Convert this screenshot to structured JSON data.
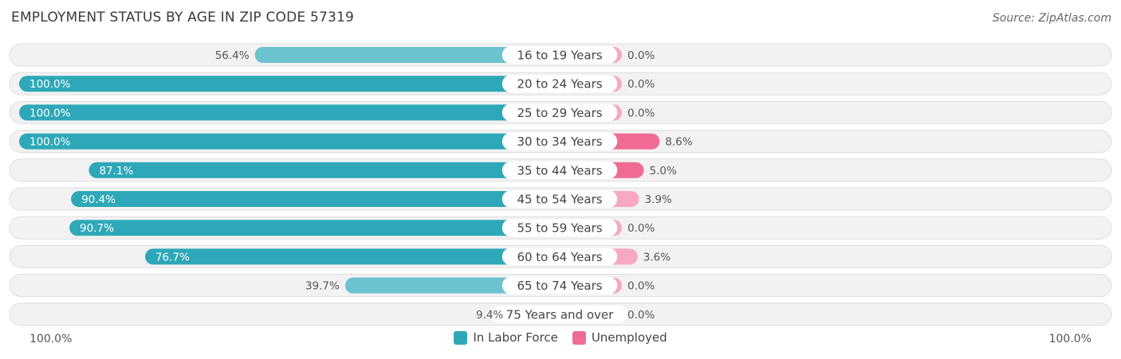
{
  "chart_data": {
    "type": "bar",
    "orientation": "diverging-horizontal",
    "title": "EMPLOYMENT STATUS BY AGE IN ZIP CODE 57319",
    "source": "Source: ZipAtlas.com",
    "categories": [
      "16 to 19 Years",
      "20 to 24 Years",
      "25 to 29 Years",
      "30 to 34 Years",
      "35 to 44 Years",
      "45 to 54 Years",
      "55 to 59 Years",
      "60 to 64 Years",
      "65 to 74 Years",
      "75 Years and over"
    ],
    "series": [
      {
        "name": "In Labor Force",
        "color": "#2ea8b8",
        "values": [
          56.4,
          100.0,
          100.0,
          100.0,
          87.1,
          90.4,
          90.7,
          76.7,
          39.7,
          9.4
        ],
        "labels": [
          "56.4%",
          "100.0%",
          "100.0%",
          "100.0%",
          "87.1%",
          "90.4%",
          "90.7%",
          "76.7%",
          "39.7%",
          "9.4%"
        ]
      },
      {
        "name": "Unemployed",
        "color": "#f06b94",
        "values": [
          0.0,
          0.0,
          0.0,
          8.6,
          5.0,
          3.9,
          0.0,
          3.6,
          0.0,
          0.0
        ],
        "labels": [
          "0.0%",
          "0.0%",
          "0.0%",
          "8.6%",
          "5.0%",
          "3.9%",
          "0.0%",
          "3.6%",
          "0.0%",
          "0.0%"
        ]
      }
    ],
    "axis_left_label": "100.0%",
    "axis_right_label": "100.0%",
    "left_range": [
      0,
      100
    ],
    "right_range": [
      0,
      100
    ],
    "legend_position": "bottom-center"
  }
}
